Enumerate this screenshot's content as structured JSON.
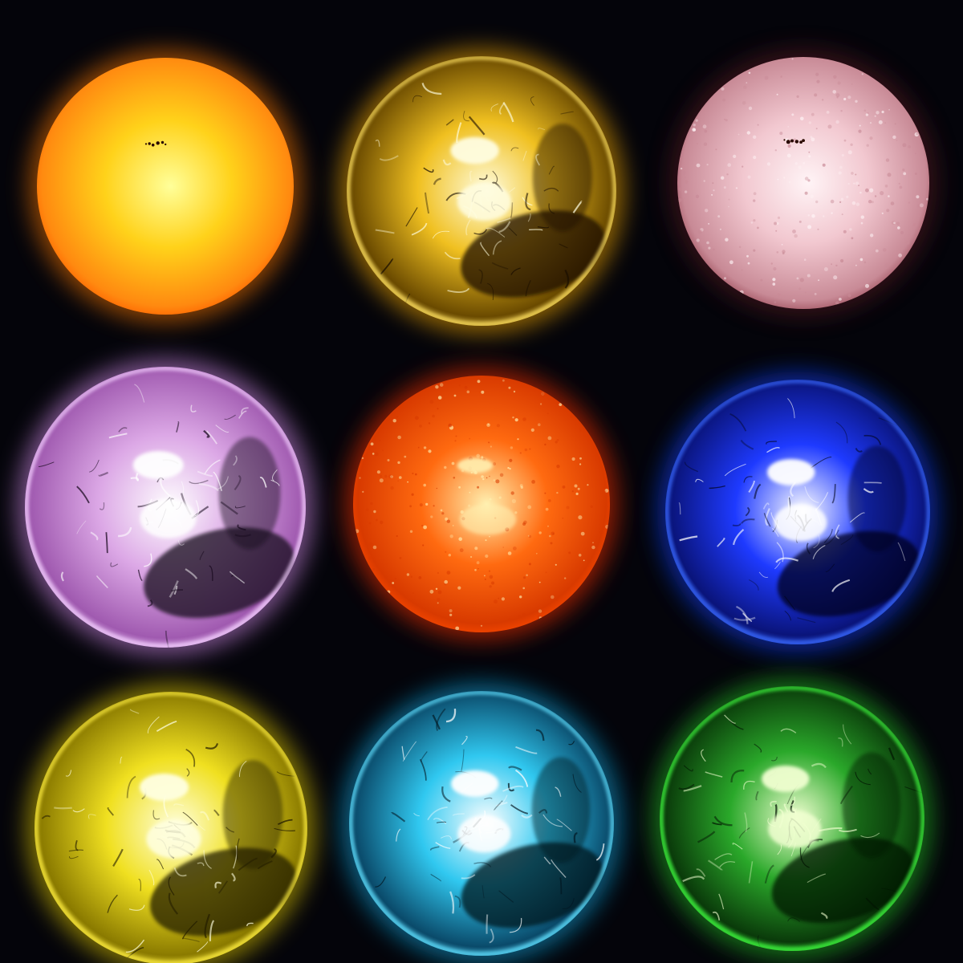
{
  "background": "#04040a",
  "suns": [
    {
      "id": "sun-orange-yellow",
      "core": "#ffff9a",
      "mid": "#ffd21a",
      "edge": "#ff8a10",
      "rim": "#ff5e00",
      "glow": "#ff7a00",
      "texture": "smooth",
      "spots": true
    },
    {
      "id": "sun-gold",
      "core": "#fffde0",
      "mid": "#f0c020",
      "edge": "#6a4a00",
      "rim": "#ffe060",
      "glow": "#ffb000",
      "texture": "loops",
      "dark": "#1a0e00"
    },
    {
      "id": "sun-pink",
      "core": "#fff4f6",
      "mid": "#f2c8d0",
      "edge": "#c88a96",
      "rim": "#9a4a58",
      "glow": "#5a1a24",
      "texture": "granules",
      "spots": true
    },
    {
      "id": "sun-purple",
      "core": "#ffffff",
      "mid": "#dca8e6",
      "edge": "#a05ab0",
      "rim": "#f4d0ff",
      "glow": "#d890f0",
      "texture": "loops",
      "dark": "#180a1e"
    },
    {
      "id": "sun-red-orange",
      "core": "#fff0b0",
      "mid": "#ff6a10",
      "edge": "#d83a00",
      "rim": "#ff4a00",
      "glow": "#ff3000",
      "texture": "granules"
    },
    {
      "id": "sun-blue",
      "core": "#ffffff",
      "mid": "#1e3aff",
      "edge": "#0a147a",
      "rim": "#3a6aff",
      "glow": "#1040ff",
      "texture": "loops",
      "dark": "#02051a"
    },
    {
      "id": "sun-yellow",
      "core": "#ffffe0",
      "mid": "#f0e020",
      "edge": "#8a7a00",
      "rim": "#ffee40",
      "glow": "#e8d000",
      "texture": "loops",
      "dark": "#201a00"
    },
    {
      "id": "sun-cyan",
      "core": "#ffffff",
      "mid": "#30c8f0",
      "edge": "#0a4a6a",
      "rim": "#60e0ff",
      "glow": "#10a8e0",
      "texture": "loops",
      "dark": "#02141e"
    },
    {
      "id": "sun-green",
      "core": "#f0ffd0",
      "mid": "#2aa82a",
      "edge": "#0a3a0a",
      "rim": "#40ff40",
      "glow": "#20c020",
      "texture": "loops",
      "dark": "#021202"
    }
  ]
}
